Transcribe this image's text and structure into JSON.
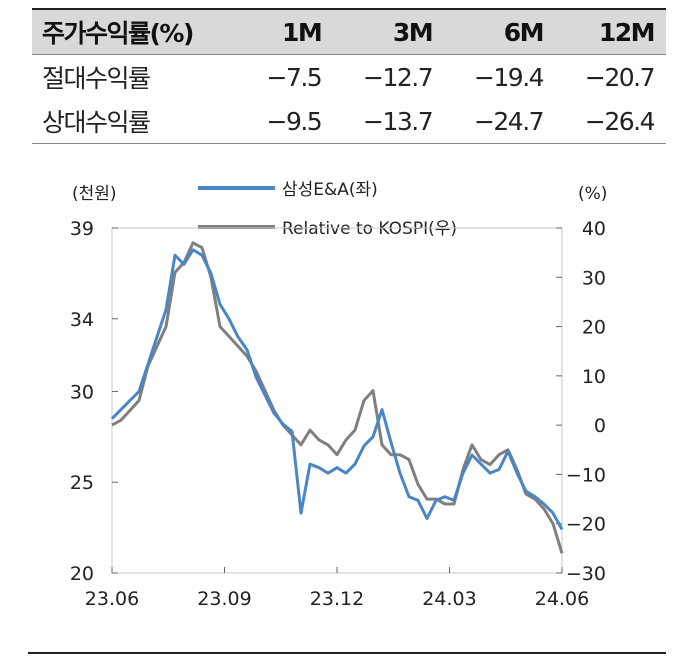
{
  "table": {
    "headers": [
      "주가수익률(%)",
      "1M",
      "3M",
      "6M",
      "12M"
    ],
    "rows": [
      {
        "label": "절대수익률",
        "values": [
          "−7.5",
          "−12.7",
          "−19.4",
          "−20.7"
        ]
      },
      {
        "label": "상대수익률",
        "values": [
          "−9.5",
          "−13.7",
          "−24.7",
          "−26.4"
        ]
      }
    ]
  },
  "colors": {
    "series1": "#4a86c5",
    "series2": "#7f7f7f"
  },
  "chart_data": {
    "type": "line",
    "left_axis_unit": "(천원)",
    "right_axis_unit": "(%)",
    "x_ticks": [
      "23.06",
      "23.09",
      "23.12",
      "24.03",
      "24.06"
    ],
    "left_ticks": [
      "20",
      "25",
      "30",
      "34",
      "39"
    ],
    "left_tick_values": [
      20,
      25,
      30,
      34,
      39
    ],
    "left_ylim": [
      20,
      39
    ],
    "right_ticks": [
      "40",
      "30",
      "20",
      "10",
      "0",
      "−10",
      "−20",
      "−30"
    ],
    "right_tick_values": [
      40,
      30,
      20,
      10,
      0,
      -10,
      -20,
      -30
    ],
    "right_ylim": [
      -30,
      40
    ],
    "series": [
      {
        "name": "삼성E&A(좌)",
        "axis": "left",
        "values": [
          28.5,
          29.0,
          29.5,
          30.0,
          31.5,
          33.0,
          34.5,
          37.5,
          37.0,
          37.8,
          37.5,
          36.5,
          34.8,
          34.0,
          33.0,
          32.3,
          30.8,
          29.8,
          28.8,
          28.2,
          27.8,
          23.3,
          26.0,
          25.8,
          25.5,
          25.8,
          25.5,
          26.0,
          27.0,
          27.5,
          29.0,
          27.2,
          25.5,
          24.2,
          24.0,
          23.0,
          24.0,
          24.2,
          24.0,
          25.5,
          26.5,
          26.0,
          25.5,
          25.7,
          26.7,
          25.5,
          24.5,
          24.2,
          23.8,
          23.3,
          22.4
        ]
      },
      {
        "name": "Relative to KOSPI(우)",
        "axis": "right",
        "values": [
          0,
          1,
          3,
          5,
          12,
          16,
          20,
          31,
          33,
          37,
          36,
          30,
          20,
          18,
          16,
          14,
          11,
          7,
          3,
          0,
          -2,
          -4,
          -1,
          -3,
          -4,
          -6,
          -3,
          -1,
          5,
          7,
          -4,
          -6,
          -6,
          -7,
          -12,
          -15,
          -15,
          -16,
          -16,
          -9,
          -4,
          -7,
          -8,
          -6,
          -5,
          -9,
          -14,
          -15,
          -17,
          -20,
          -26
        ]
      }
    ]
  }
}
